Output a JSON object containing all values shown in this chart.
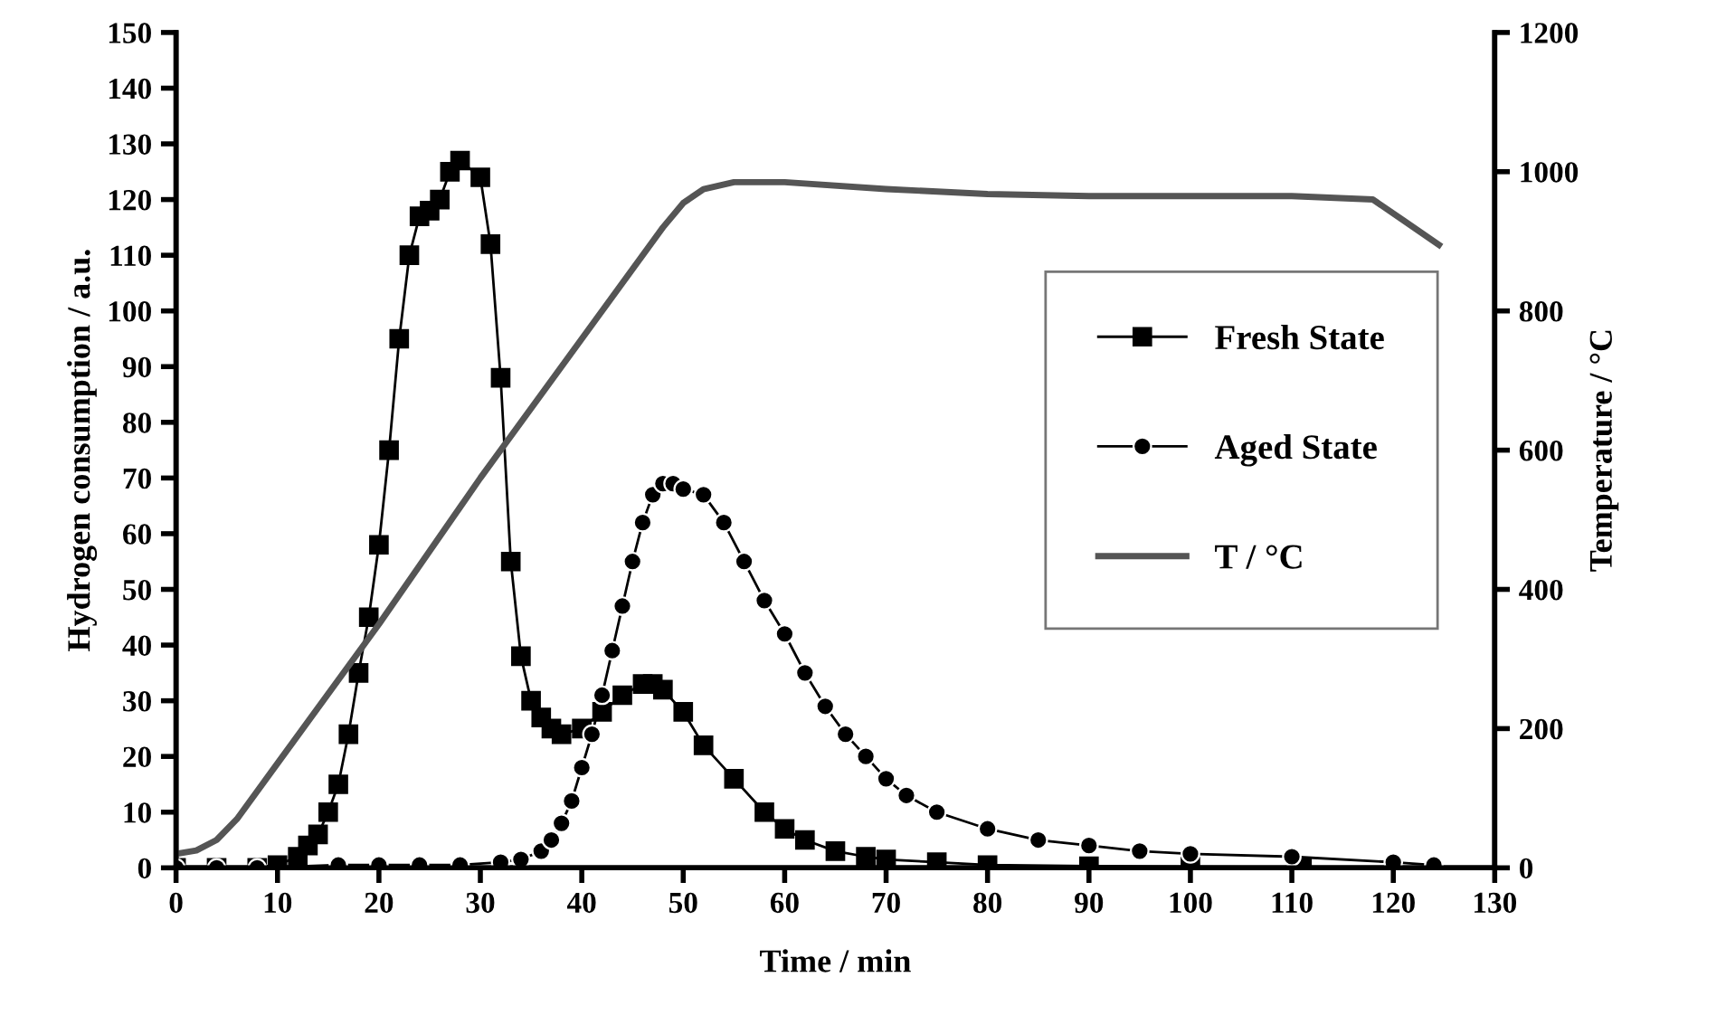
{
  "chart_data": {
    "type": "line",
    "xlabel": "Time / min",
    "ylabel": "Hydrogen consumption / a.u.",
    "y2label": "Temperature / °C",
    "xlim": [
      0,
      130
    ],
    "xticks": [
      0,
      10,
      20,
      30,
      40,
      50,
      60,
      70,
      80,
      90,
      100,
      110,
      120,
      130
    ],
    "ylim": [
      0,
      150
    ],
    "yticks": [
      0,
      10,
      20,
      30,
      40,
      50,
      60,
      70,
      80,
      90,
      100,
      110,
      120,
      130,
      140,
      150
    ],
    "y2lim": [
      0,
      1200
    ],
    "y2ticks": [
      0,
      200,
      400,
      600,
      800,
      1000,
      1200
    ],
    "legend": "center right",
    "grid": false,
    "series": [
      {
        "name": "Fresh State",
        "color": "#000000",
        "marker": "square",
        "x": [
          0,
          4,
          8,
          10,
          12,
          13,
          14,
          15,
          16,
          17,
          18,
          19,
          20,
          21,
          22,
          23,
          24,
          25,
          26,
          27,
          28,
          30,
          31,
          32,
          33,
          34,
          35,
          36,
          37,
          38,
          40,
          42,
          44,
          46,
          47,
          48,
          50,
          52,
          55,
          58,
          60,
          62,
          65,
          68,
          70,
          75,
          80,
          90,
          100,
          111
        ],
        "values": [
          0,
          0,
          0,
          0.5,
          2,
          4,
          6,
          10,
          15,
          24,
          35,
          45,
          58,
          75,
          95,
          110,
          117,
          118,
          120,
          125,
          127,
          124,
          112,
          88,
          55,
          38,
          30,
          27,
          25,
          24,
          25,
          28,
          31,
          33,
          33,
          32,
          28,
          22,
          16,
          10,
          7,
          5,
          3,
          2,
          1.5,
          1,
          0.5,
          0.3,
          0.2,
          0.1
        ]
      },
      {
        "name": "Aged State",
        "color": "#000000",
        "marker": "circle",
        "x": [
          0,
          4,
          8,
          16,
          20,
          24,
          28,
          32,
          34,
          36,
          37,
          38,
          39,
          40,
          41,
          42,
          43,
          44,
          45,
          46,
          47,
          48,
          49,
          50,
          52,
          54,
          56,
          58,
          60,
          62,
          64,
          66,
          68,
          70,
          72,
          75,
          80,
          85,
          90,
          95,
          100,
          110,
          120,
          124
        ],
        "values": [
          0,
          0,
          0,
          0.5,
          0.5,
          0.5,
          0.5,
          1,
          1.5,
          3,
          5,
          8,
          12,
          18,
          24,
          31,
          39,
          47,
          55,
          62,
          67,
          69,
          69,
          68,
          67,
          62,
          55,
          48,
          42,
          35,
          29,
          24,
          20,
          16,
          13,
          10,
          7,
          5,
          4,
          3,
          2.5,
          2,
          1,
          0.5
        ]
      },
      {
        "name": "T / °C",
        "color": "#555555",
        "marker": "none",
        "axis": "y2",
        "x": [
          0,
          2,
          4,
          6,
          10,
          20,
          30,
          40,
          48,
          50,
          52,
          55,
          60,
          70,
          80,
          90,
          100,
          110,
          118,
          121,
          124.5
        ],
        "values": [
          20,
          25,
          40,
          70,
          150,
          350,
          560,
          760,
          920,
          955,
          975,
          985,
          985,
          975,
          968,
          965,
          965,
          965,
          960,
          930,
          895
        ]
      }
    ]
  }
}
